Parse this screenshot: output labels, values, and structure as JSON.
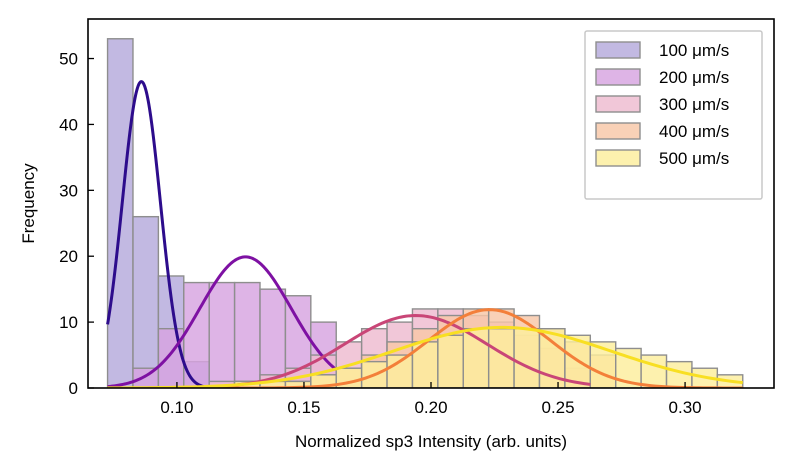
{
  "chart_data": {
    "type": "histogram",
    "title": "",
    "xlabel": "Normalized sp3 Intensity (arb. units)",
    "ylabel": "Frequency",
    "xlim": [
      0.065,
      0.335
    ],
    "ylim": [
      0,
      56
    ],
    "xticks": [
      0.1,
      0.15,
      0.2,
      0.25,
      0.3
    ],
    "xtick_labels": [
      "0.10",
      "0.15",
      "0.20",
      "0.25",
      "0.30"
    ],
    "yticks": [
      0,
      10,
      20,
      30,
      40,
      50
    ],
    "ytick_labels": [
      "0",
      "10",
      "20",
      "30",
      "40",
      "50"
    ],
    "grid": false,
    "legend_position": "upper-right",
    "series": [
      {
        "name": "100 μm/s",
        "color": "#b5a9dc",
        "curve_color": "#2d0c8c",
        "bin_edges": [
          0.0727,
          0.0827,
          0.0927,
          0.1027,
          0.1127
        ],
        "counts": [
          53,
          26,
          17,
          4
        ],
        "fit": {
          "amplitude": 46.5,
          "mean": 0.086,
          "std": 0.0075,
          "x_range": [
            0.0727,
            0.1127
          ]
        }
      },
      {
        "name": "200 μm/s",
        "color": "#d7a4e1",
        "curve_color": "#7e11a3",
        "bin_edges": [
          0.0827,
          0.0927,
          0.1027,
          0.1127,
          0.1227,
          0.1327,
          0.1427,
          0.1527,
          0.1627
        ],
        "counts": [
          3,
          9,
          16,
          16,
          16,
          15,
          14,
          10
        ],
        "fit": {
          "amplitude": 19.9,
          "mean": 0.127,
          "std": 0.018,
          "x_range": [
            0.0727,
            0.1627
          ]
        }
      },
      {
        "name": "300 μm/s",
        "color": "#eebbd0",
        "curve_color": "#c94677",
        "bin_edges": [
          0.1127,
          0.1227,
          0.1327,
          0.1427,
          0.1527,
          0.1627,
          0.1727,
          0.1827,
          0.1927,
          0.2027,
          0.2127,
          0.2227,
          0.2327,
          0.2427,
          0.2527,
          0.2627
        ],
        "counts": [
          1,
          1,
          2,
          3,
          5,
          7,
          9,
          10,
          12,
          12,
          11,
          10,
          8,
          6,
          3
        ],
        "fit": {
          "amplitude": 11.0,
          "mean": 0.194,
          "std": 0.028,
          "x_range": [
            0.0727,
            0.2627
          ]
        }
      },
      {
        "name": "400 μm/s",
        "color": "#f8c7a7",
        "curve_color": "#f37f3a",
        "bin_edges": [
          0.1227,
          0.1327,
          0.1427,
          0.1527,
          0.1627,
          0.1727,
          0.1827,
          0.1927,
          0.2027,
          0.2127,
          0.2227,
          0.2327,
          0.2427,
          0.2527,
          0.2627,
          0.2727
        ],
        "counts": [
          1,
          1,
          1,
          2,
          3,
          5,
          7,
          9,
          11,
          12,
          12,
          11,
          9,
          7,
          5
        ],
        "fit": {
          "amplitude": 11.9,
          "mean": 0.223,
          "std": 0.024,
          "x_range": [
            0.0727,
            0.3227
          ]
        }
      },
      {
        "name": "500 μm/s",
        "color": "#fcee9c",
        "curve_color": "#f8df22",
        "bin_edges": [
          0.1227,
          0.1327,
          0.1427,
          0.1527,
          0.1627,
          0.1727,
          0.1827,
          0.1927,
          0.2027,
          0.2127,
          0.2227,
          0.2327,
          0.2427,
          0.2527,
          0.2627,
          0.2727,
          0.2827,
          0.2927,
          0.3027,
          0.3127,
          0.3227
        ],
        "counts": [
          1,
          1,
          1,
          2,
          3,
          4,
          5,
          7,
          8,
          9,
          9,
          9,
          9,
          8,
          7,
          6,
          5,
          4,
          3,
          2
        ],
        "fit": {
          "amplitude": 9.2,
          "mean": 0.228,
          "std": 0.043,
          "x_range": [
            0.0727,
            0.3227
          ]
        }
      }
    ]
  }
}
